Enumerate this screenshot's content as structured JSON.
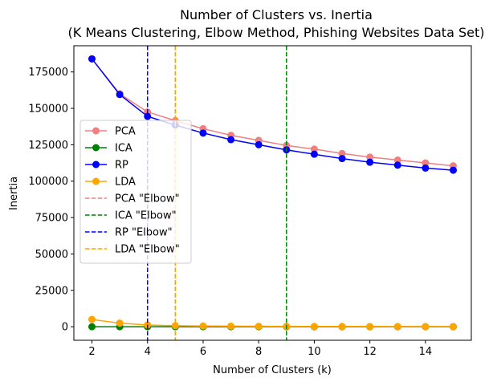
{
  "chart_data": {
    "type": "line",
    "title_lines": [
      "Number of Clusters vs. Inertia",
      "(K Means Clustering, Elbow Method, Phishing Websites Data Set)"
    ],
    "xlabel": "Number of Clusters (k)",
    "ylabel": "Inertia",
    "xlim": [
      1.35,
      15.65
    ],
    "ylim": [
      -9300,
      193000
    ],
    "x_ticks": [
      2,
      4,
      6,
      8,
      10,
      12,
      14
    ],
    "y_ticks": [
      0,
      25000,
      50000,
      75000,
      100000,
      125000,
      150000,
      175000
    ],
    "x": [
      2,
      3,
      4,
      5,
      6,
      7,
      8,
      9,
      10,
      11,
      12,
      13,
      14,
      15
    ],
    "series": [
      {
        "name": "PCA",
        "color": "#f08080",
        "values": [
          184000,
          160000,
          147500,
          141500,
          136000,
          131500,
          128000,
          124500,
          122000,
          119000,
          116500,
          114500,
          112500,
          110500
        ]
      },
      {
        "name": "ICA",
        "color": "#008000",
        "values": [
          0,
          0,
          0,
          0,
          0,
          0,
          0,
          0,
          0,
          0,
          0,
          0,
          0,
          0
        ]
      },
      {
        "name": "RP",
        "color": "#0000ff",
        "values": [
          184000,
          159500,
          144500,
          138500,
          133000,
          128500,
          125000,
          121500,
          118500,
          115500,
          113000,
          111000,
          109000,
          107500
        ]
      },
      {
        "name": "LDA",
        "color": "#ffa500",
        "values": [
          5000,
          2500,
          1200,
          700,
          500,
          400,
          300,
          250,
          200,
          180,
          160,
          140,
          130,
          120
        ]
      }
    ],
    "elbows": [
      {
        "name": "PCA \"Elbow\"",
        "color": "#f08080",
        "x": 5
      },
      {
        "name": "ICA \"Elbow\"",
        "color": "#008000",
        "x": 9
      },
      {
        "name": "RP \"Elbow\"",
        "color": "#0000ff",
        "x": 4
      },
      {
        "name": "LDA \"Elbow\"",
        "color": "#ffa500",
        "x": 5
      }
    ],
    "legend_position": "center-left",
    "grid": false
  }
}
